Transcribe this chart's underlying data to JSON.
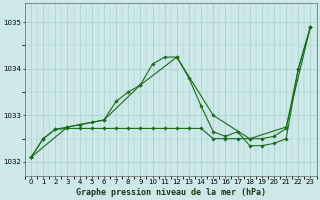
{
  "title": "Graphe pression niveau de la mer (hPa)",
  "bg_color": "#cce8e8",
  "grid_color": "#aacccc",
  "line_color": "#1a6b1a",
  "xlim": [
    -0.5,
    23.5
  ],
  "ylim": [
    1031.7,
    1035.4
  ],
  "xticks": [
    0,
    1,
    2,
    3,
    4,
    5,
    6,
    7,
    8,
    9,
    10,
    11,
    12,
    13,
    14,
    15,
    16,
    17,
    18,
    19,
    20,
    21,
    22,
    23
  ],
  "yticks": [
    1032,
    1033,
    1034,
    1035
  ],
  "series1_x": [
    0,
    1,
    2,
    3,
    4,
    5,
    6,
    7,
    8,
    9,
    10,
    11,
    12,
    13,
    14,
    15,
    16,
    17,
    18,
    19,
    20,
    21,
    22,
    23
  ],
  "series1_y": [
    1032.1,
    1032.5,
    1032.7,
    1032.75,
    1032.8,
    1032.85,
    1032.9,
    1033.3,
    1033.5,
    1033.65,
    1034.1,
    1034.25,
    1034.25,
    1033.8,
    1033.2,
    1032.65,
    1032.55,
    1032.65,
    1032.35,
    1032.35,
    1032.4,
    1032.5,
    1034.0,
    1034.9
  ],
  "series2_x": [
    0,
    1,
    2,
    3,
    4,
    5,
    6,
    7,
    8,
    9,
    10,
    11,
    12,
    13,
    14,
    15,
    16,
    17,
    18,
    19,
    20,
    21,
    22,
    23
  ],
  "series2_y": [
    1032.1,
    1032.5,
    1032.7,
    1032.72,
    1032.72,
    1032.72,
    1032.72,
    1032.72,
    1032.72,
    1032.72,
    1032.72,
    1032.72,
    1032.72,
    1032.72,
    1032.72,
    1032.5,
    1032.5,
    1032.5,
    1032.5,
    1032.5,
    1032.55,
    1032.72,
    1034.0,
    1034.9
  ],
  "series3_x": [
    0,
    3,
    6,
    9,
    12,
    15,
    18,
    21,
    23
  ],
  "series3_y": [
    1032.1,
    1032.75,
    1032.9,
    1033.65,
    1034.25,
    1033.0,
    1032.5,
    1032.75,
    1034.9
  ]
}
